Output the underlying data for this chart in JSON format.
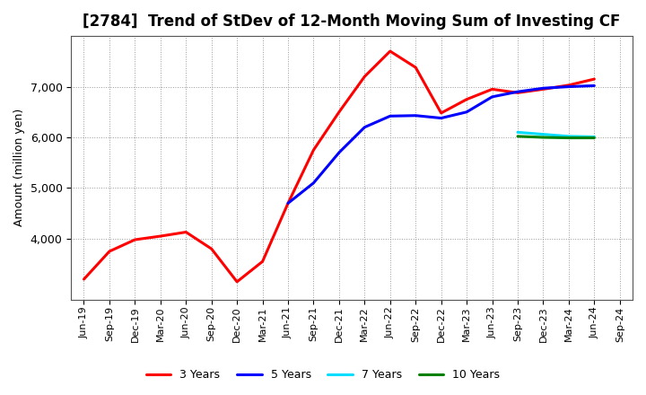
{
  "title": "[2784]  Trend of StDev of 12-Month Moving Sum of Investing CF",
  "ylabel": "Amount (million yen)",
  "x_labels": [
    "Jun-19",
    "Sep-19",
    "Dec-19",
    "Mar-20",
    "Jun-20",
    "Sep-20",
    "Dec-20",
    "Mar-21",
    "Jun-21",
    "Sep-21",
    "Dec-21",
    "Mar-22",
    "Jun-22",
    "Sep-22",
    "Dec-22",
    "Mar-23",
    "Jun-23",
    "Sep-23",
    "Dec-23",
    "Mar-24",
    "Jun-24",
    "Sep-24"
  ],
  "series": {
    "3 Years": {
      "color": "#FF0000",
      "data": [
        [
          "Jun-19",
          3200
        ],
        [
          "Sep-19",
          3750
        ],
        [
          "Dec-19",
          3980
        ],
        [
          "Mar-20",
          4050
        ],
        [
          "Jun-20",
          4130
        ],
        [
          "Sep-20",
          3800
        ],
        [
          "Dec-20",
          3150
        ],
        [
          "Mar-21",
          3550
        ],
        [
          "Jun-21",
          4700
        ],
        [
          "Sep-21",
          5750
        ],
        [
          "Dec-21",
          6500
        ],
        [
          "Mar-22",
          7200
        ],
        [
          "Jun-22",
          7700
        ],
        [
          "Sep-22",
          7380
        ],
        [
          "Dec-22",
          6480
        ],
        [
          "Mar-23",
          6750
        ],
        [
          "Jun-23",
          6950
        ],
        [
          "Sep-23",
          6880
        ],
        [
          "Dec-23",
          6950
        ],
        [
          "Mar-24",
          7030
        ],
        [
          "Jun-24",
          7150
        ]
      ]
    },
    "5 Years": {
      "color": "#0000FF",
      "data": [
        [
          "Jun-21",
          4700
        ],
        [
          "Sep-21",
          5100
        ],
        [
          "Dec-21",
          5700
        ],
        [
          "Mar-22",
          6200
        ],
        [
          "Jun-22",
          6420
        ],
        [
          "Sep-22",
          6430
        ],
        [
          "Dec-22",
          6380
        ],
        [
          "Mar-23",
          6500
        ],
        [
          "Jun-23",
          6800
        ],
        [
          "Sep-23",
          6900
        ],
        [
          "Dec-23",
          6970
        ],
        [
          "Mar-24",
          7000
        ],
        [
          "Jun-24",
          7020
        ]
      ]
    },
    "7 Years": {
      "color": "#00DDFF",
      "data": [
        [
          "Sep-23",
          6100
        ],
        [
          "Dec-23",
          6060
        ],
        [
          "Mar-24",
          6020
        ],
        [
          "Jun-24",
          6010
        ]
      ]
    },
    "10 Years": {
      "color": "#008000",
      "data": [
        [
          "Sep-23",
          6020
        ],
        [
          "Dec-23",
          6000
        ],
        [
          "Mar-24",
          5990
        ],
        [
          "Jun-24",
          5990
        ]
      ]
    }
  },
  "ylim": [
    2800,
    8000
  ],
  "yticks": [
    4000,
    5000,
    6000,
    7000
  ],
  "background_color": "#FFFFFF",
  "plot_bg_color": "#FFFFFF",
  "grid_color": "#999999",
  "title_fontsize": 12,
  "legend_entries": [
    "3 Years",
    "5 Years",
    "7 Years",
    "10 Years"
  ]
}
